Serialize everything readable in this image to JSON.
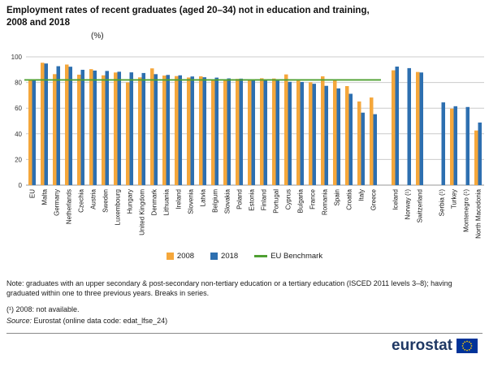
{
  "header": {
    "title_lines": [
      "Employment rates of recent graduates (aged 20–34) not in education and training,",
      "2008 and 2018"
    ],
    "unit": "(%)"
  },
  "chart_data": {
    "type": "bar",
    "title": "Employment rates of recent graduates (aged 20–34) not in education and training, 2008 and 2018",
    "xlabel": "",
    "ylabel": "(%)",
    "ylim": [
      0,
      100
    ],
    "yticks": [
      0,
      20,
      40,
      60,
      80,
      100
    ],
    "grid": true,
    "legend_position": "bottom",
    "benchmark": {
      "label": "EU Benchmark",
      "value": 82
    },
    "colors": {
      "2008": "#F5A73B",
      "2018": "#2D6FB0",
      "benchmark": "#4FA032"
    },
    "series": [
      "2008",
      "2018"
    ],
    "legend": [
      {
        "label": "2008",
        "type": "square",
        "color_key": "2008"
      },
      {
        "label": "2018",
        "type": "square",
        "color_key": "2018"
      },
      {
        "label": "EU Benchmark",
        "type": "line",
        "color_key": "benchmark"
      }
    ],
    "categories": [
      {
        "label": "EU",
        "v2008": 82.0,
        "v2018": 81.6,
        "group": 0
      },
      {
        "label": "Malta",
        "v2008": 95.4,
        "v2018": 94.8,
        "group": 0
      },
      {
        "label": "Germany",
        "v2008": 86.5,
        "v2018": 92.7,
        "group": 0
      },
      {
        "label": "Netherlands",
        "v2008": 94.0,
        "v2018": 92.3,
        "group": 0
      },
      {
        "label": "Czechia",
        "v2008": 86.1,
        "v2018": 89.9,
        "group": 0
      },
      {
        "label": "Austria",
        "v2008": 90.4,
        "v2018": 89.3,
        "group": 0
      },
      {
        "label": "Sweden",
        "v2008": 85.6,
        "v2018": 89.0,
        "group": 0
      },
      {
        "label": "Luxembourg",
        "v2008": 87.8,
        "v2018": 88.4,
        "group": 0
      },
      {
        "label": "Hungary",
        "v2008": 80.1,
        "v2018": 87.9,
        "group": 0
      },
      {
        "label": "United Kingdom",
        "v2008": 84.0,
        "v2018": 87.4,
        "group": 0
      },
      {
        "label": "Denmark",
        "v2008": 91.0,
        "v2018": 86.5,
        "group": 0
      },
      {
        "label": "Lithuania",
        "v2008": 85.4,
        "v2018": 85.9,
        "group": 0
      },
      {
        "label": "Ireland",
        "v2008": 85.0,
        "v2018": 85.6,
        "group": 0
      },
      {
        "label": "Slovenia",
        "v2008": 83.9,
        "v2018": 84.7,
        "group": 0
      },
      {
        "label": "Latvia",
        "v2008": 84.8,
        "v2018": 84.1,
        "group": 0
      },
      {
        "label": "Belgium",
        "v2008": 82.0,
        "v2018": 83.8,
        "group": 0
      },
      {
        "label": "Slovakia",
        "v2008": 82.3,
        "v2018": 83.2,
        "group": 0
      },
      {
        "label": "Poland",
        "v2008": 82.8,
        "v2018": 83.0,
        "group": 0
      },
      {
        "label": "Estonia",
        "v2008": 82.6,
        "v2018": 82.5,
        "group": 0
      },
      {
        "label": "Finland",
        "v2008": 83.3,
        "v2018": 81.7,
        "group": 0
      },
      {
        "label": "Portugal",
        "v2008": 83.1,
        "v2018": 81.5,
        "group": 0
      },
      {
        "label": "Cyprus",
        "v2008": 86.3,
        "v2018": 80.5,
        "group": 0
      },
      {
        "label": "Bulgaria",
        "v2008": 81.5,
        "v2018": 80.4,
        "group": 0
      },
      {
        "label": "France",
        "v2008": 80.2,
        "v2018": 79.0,
        "group": 0
      },
      {
        "label": "Romania",
        "v2008": 84.8,
        "v2018": 77.4,
        "group": 0
      },
      {
        "label": "Spain",
        "v2008": 82.1,
        "v2018": 75.4,
        "group": 0
      },
      {
        "label": "Croatia",
        "v2008": 77.2,
        "v2018": 71.2,
        "group": 0
      },
      {
        "label": "Italy",
        "v2008": 65.2,
        "v2018": 56.5,
        "group": 0
      },
      {
        "label": "Greece",
        "v2008": 68.3,
        "v2018": 55.3,
        "group": 0
      },
      {
        "label": "Iceland",
        "v2008": 89.5,
        "v2018": 92.4,
        "group": 1
      },
      {
        "label": "Norway (¹)",
        "v2008": null,
        "v2018": 91.2,
        "group": 1
      },
      {
        "label": "Switzerland",
        "v2008": 88.2,
        "v2018": 87.8,
        "group": 1
      },
      {
        "label": "Serbia (¹)",
        "v2008": null,
        "v2018": 64.5,
        "group": 2
      },
      {
        "label": "Turkey",
        "v2008": 59.6,
        "v2018": 61.5,
        "group": 2
      },
      {
        "label": "Montenegro (¹)",
        "v2008": null,
        "v2018": 60.9,
        "group": 2
      },
      {
        "label": "North Macedonia",
        "v2008": 42.6,
        "v2018": 48.8,
        "group": 2
      }
    ]
  },
  "footer": {
    "note": "Note: graduates with an upper secondary & post-secondary non-tertiary education or a tertiary education (ISCED 2011 levels 3–8); having graduated within one to three previous years. Breaks in series.",
    "footnote": "(¹) 2008: not available.",
    "source_label": "Source:",
    "source_text": "Eurostat (online data code: edat_lfse_24)",
    "logo_text": "eurostat"
  }
}
